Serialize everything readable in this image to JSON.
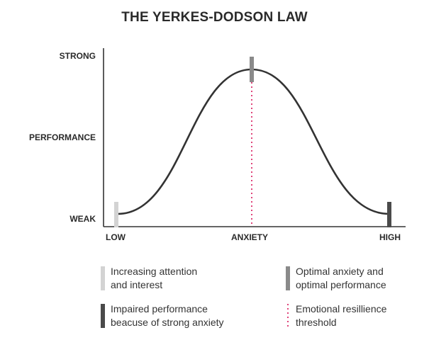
{
  "title": "THE YERKES-DODSON LAW",
  "y_axis": {
    "top": "STRONG",
    "middle": "PERFORMANCE",
    "bottom": "WEAK"
  },
  "x_axis": {
    "left": "LOW",
    "middle": "ANXIETY",
    "right": "HIGH"
  },
  "colors": {
    "curve": "#333333",
    "axis": "#333333",
    "marker_light": "#d3d3d3",
    "marker_mid": "#8a8a8a",
    "marker_dark": "#4a4a4a",
    "threshold": "#e0457b"
  },
  "legend": [
    {
      "marker": "light",
      "line1": "Increasing attention",
      "line2": "and interest"
    },
    {
      "marker": "mid",
      "line1": "Optimal anxiety and",
      "line2": "optimal performance"
    },
    {
      "marker": "dark",
      "line1": "Impaired performance",
      "line2": "beacuse of strong anxiety"
    },
    {
      "marker": "dots",
      "line1": "Emotional resillience",
      "line2": "threshold"
    }
  ]
}
